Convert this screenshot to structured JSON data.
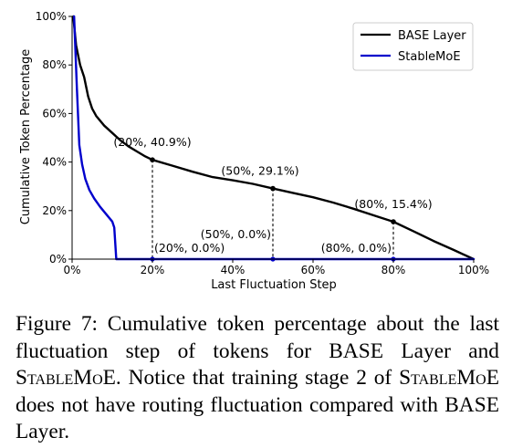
{
  "chart_data": {
    "type": "line",
    "xlabel": "Last Fluctuation Step",
    "ylabel": "Cumulative Token Percentage",
    "xlim": [
      0,
      100
    ],
    "ylim": [
      0,
      100
    ],
    "x_ticks": [
      "0%",
      "20%",
      "40%",
      "60%",
      "80%",
      "100%"
    ],
    "y_ticks": [
      "0%",
      "20%",
      "40%",
      "60%",
      "80%",
      "100%"
    ],
    "legend_position": "top-right",
    "grid": false,
    "series": [
      {
        "name": "BASE Layer",
        "color": "#000000",
        "x": [
          0.3,
          1,
          2,
          3,
          4,
          5,
          6,
          8,
          10,
          12,
          14,
          16,
          18,
          20,
          25,
          30,
          35,
          40,
          45,
          50,
          55,
          60,
          65,
          70,
          75,
          80,
          85,
          90,
          95,
          100
        ],
        "y": [
          100,
          88,
          80,
          75,
          67,
          62,
          59,
          55,
          52,
          49,
          46.5,
          44.5,
          42.5,
          40.9,
          38.5,
          36,
          33.8,
          32.5,
          31,
          29.1,
          27.3,
          25.5,
          23.3,
          20.8,
          18.1,
          15.4,
          11.5,
          7.5,
          3.8,
          0
        ]
      },
      {
        "name": "StableMoE",
        "color": "#0000cc",
        "x": [
          0.5,
          1.2,
          1.8,
          2.5,
          3.3,
          4.3,
          5.5,
          7,
          8.5,
          10,
          10.5,
          11,
          20,
          50,
          80,
          100
        ],
        "y": [
          100,
          70,
          47,
          39,
          33,
          28.5,
          25,
          21.5,
          18.5,
          15.5,
          13,
          0,
          0,
          0,
          0,
          0
        ]
      }
    ],
    "annotations": [
      {
        "x": 20,
        "y": 40.9,
        "label": "(20%, 40.9%)",
        "zero_label": "(20%, 0.0%)"
      },
      {
        "x": 50,
        "y": 29.1,
        "label": "(50%, 29.1%)",
        "zero_label": "(50%, 0.0%)"
      },
      {
        "x": 80,
        "y": 15.4,
        "label": "(80%, 15.4%)",
        "zero_label": "(80%, 0.0%)"
      }
    ]
  },
  "caption": {
    "label": "Figure 7:",
    "text_1": "Cumulative token percentage about the last fluctuation step of tokens for BASE Layer and",
    "stablemoe_1": "StableMoE",
    "text_2": ". Notice that training stage 2 of",
    "stablemoe_2": "StableMoE",
    "text_3": "does not have routing fluctuation compared with BASE Layer."
  }
}
